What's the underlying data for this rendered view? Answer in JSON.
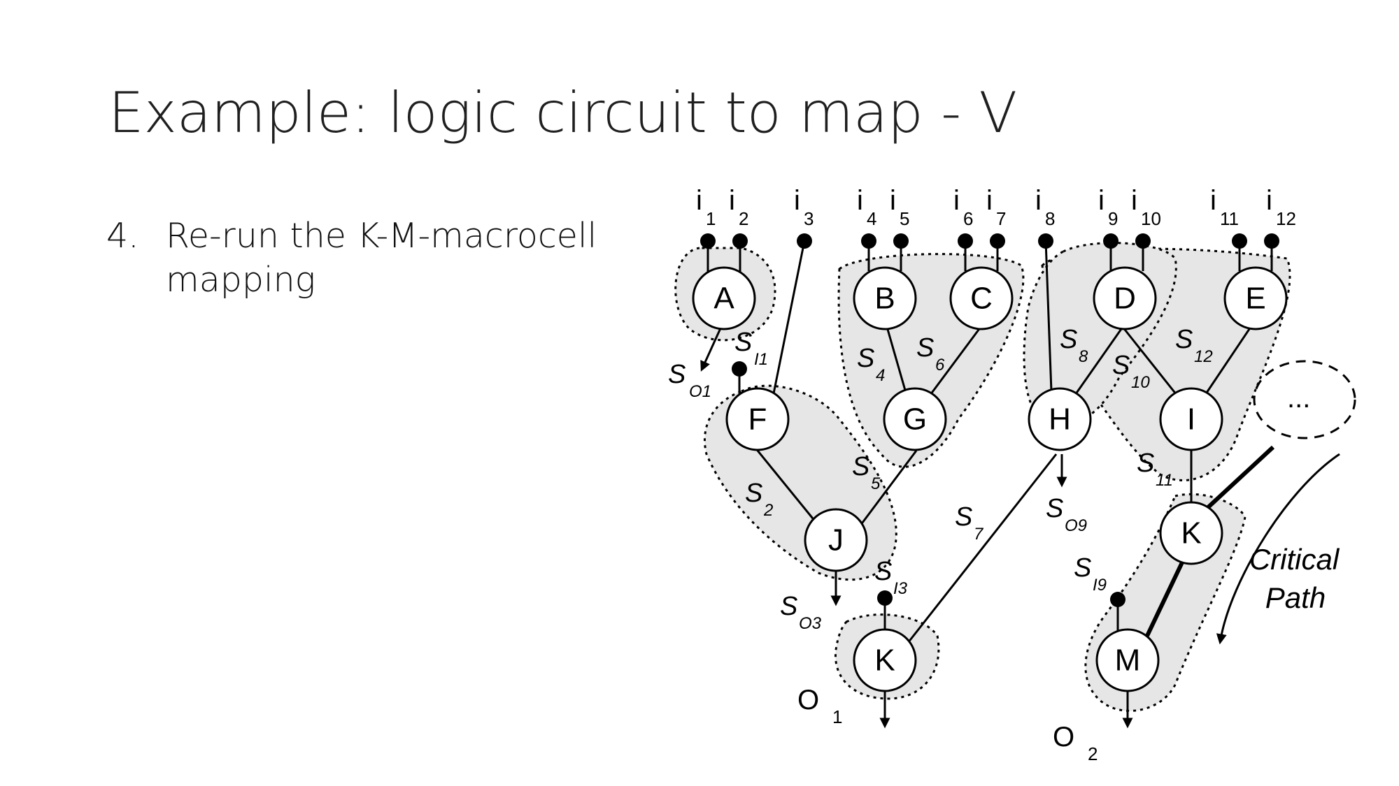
{
  "slide": {
    "title": "Example: logic circuit to map - V",
    "bullet_number": "4.",
    "bullet_text": "Re-run the K-M-macrocell mapping"
  },
  "diagram": {
    "nodes": [
      "A",
      "B",
      "C",
      "D",
      "E",
      "F",
      "G",
      "H",
      "I",
      "J",
      "K",
      "K",
      "M"
    ],
    "inputs": [
      {
        "base": "i",
        "sub": "1"
      },
      {
        "base": "i",
        "sub": "2"
      },
      {
        "base": "i",
        "sub": "3"
      },
      {
        "base": "i",
        "sub": "4"
      },
      {
        "base": "i",
        "sub": "5"
      },
      {
        "base": "i",
        "sub": "6"
      },
      {
        "base": "i",
        "sub": "7"
      },
      {
        "base": "i",
        "sub": "8"
      },
      {
        "base": "i",
        "sub": "9"
      },
      {
        "base": "i",
        "sub": "10"
      },
      {
        "base": "i",
        "sub": "11"
      },
      {
        "base": "i",
        "sub": "12"
      }
    ],
    "signals": [
      {
        "base": "S",
        "sub": "I1"
      },
      {
        "base": "S",
        "sub": "O1"
      },
      {
        "base": "S",
        "sub": "4"
      },
      {
        "base": "S",
        "sub": "6"
      },
      {
        "base": "S",
        "sub": "8"
      },
      {
        "base": "S",
        "sub": "10"
      },
      {
        "base": "S",
        "sub": "12"
      },
      {
        "base": "S",
        "sub": "2"
      },
      {
        "base": "S",
        "sub": "5"
      },
      {
        "base": "S",
        "sub": "11"
      },
      {
        "base": "S",
        "sub": "7"
      },
      {
        "base": "S",
        "sub": "O9"
      },
      {
        "base": "S",
        "sub": "I3"
      },
      {
        "base": "S",
        "sub": "O3"
      },
      {
        "base": "S",
        "sub": "I9"
      }
    ],
    "outputs": [
      {
        "base": "O",
        "sub": "1"
      },
      {
        "base": "O",
        "sub": "2"
      }
    ],
    "ellipsis": "...",
    "critical_path": [
      "Critical",
      "Path"
    ]
  }
}
